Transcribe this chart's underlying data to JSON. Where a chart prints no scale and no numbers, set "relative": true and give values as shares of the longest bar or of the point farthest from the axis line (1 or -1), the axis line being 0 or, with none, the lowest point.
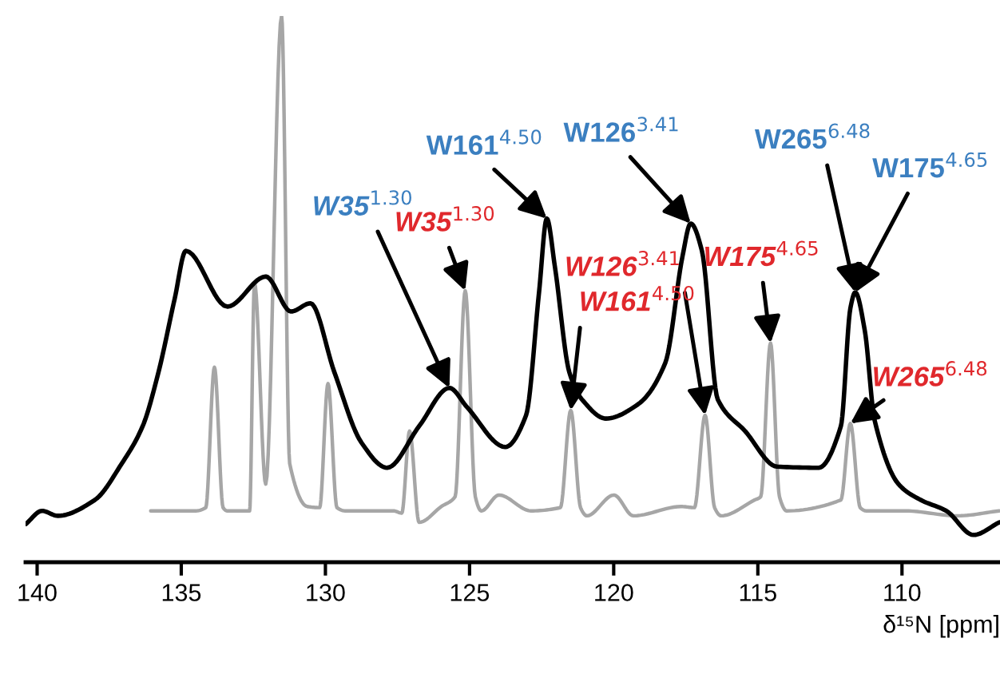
{
  "chart_data": {
    "type": "line",
    "relative": true,
    "xlabel": "δ¹⁵N [ppm]",
    "xlim": [
      140.4,
      106.6
    ],
    "xticks": [
      140,
      135,
      130,
      125,
      120,
      115,
      110
    ],
    "grid": false,
    "marker": "none",
    "line_style": "solid",
    "series": [
      {
        "color": "#000000",
        "x": [
          140.39,
          139.83,
          139.28,
          138.0,
          137.06,
          136.34,
          135.79,
          135.23,
          134.84,
          133.4,
          132.07,
          131.19,
          130.52,
          129.69,
          128.75,
          127.86,
          126.75,
          125.7,
          125.09,
          123.76,
          123.04,
          122.59,
          122.32,
          122.04,
          121.54,
          121.1,
          120.27,
          119.16,
          118.21,
          117.61,
          117.33,
          116.94,
          116.39,
          115.44,
          114.33,
          112.89,
          112.12,
          111.79,
          111.62,
          111.29,
          110.95,
          110.12,
          109.35,
          108.46,
          107.52,
          106.63
        ],
        "values": [
          0.07,
          0.094,
          0.085,
          0.114,
          0.181,
          0.249,
          0.348,
          0.482,
          0.57,
          0.468,
          0.523,
          0.459,
          0.474,
          0.348,
          0.219,
          0.173,
          0.249,
          0.319,
          0.284,
          0.211,
          0.269,
          0.494,
          0.629,
          0.541,
          0.348,
          0.298,
          0.263,
          0.289,
          0.365,
          0.561,
          0.62,
          0.57,
          0.298,
          0.24,
          0.175,
          0.173,
          0.249,
          0.465,
          0.494,
          0.424,
          0.26,
          0.143,
          0.114,
          0.094,
          0.05,
          0.073
        ]
      },
      {
        "color": "#a6a6a6",
        "x": [
          136.06,
          134.51,
          134.15,
          133.85,
          133.55,
          133.4,
          132.63,
          132.46,
          132.07,
          131.52,
          131.24,
          130.63,
          130.2,
          129.91,
          129.6,
          129.3,
          127.64,
          127.35,
          127.08,
          126.75,
          125.98,
          125.5,
          125.15,
          124.8,
          124.59,
          123.98,
          122.87,
          121.85,
          121.49,
          121.15,
          120.93,
          119.99,
          119.32,
          117.66,
          117.2,
          116.83,
          116.5,
          116.27,
          115.11,
          114.9,
          114.56,
          114.25,
          114.0,
          112.12,
          111.79,
          111.45,
          111.23,
          109.9,
          108.07,
          106.63
        ],
        "values": [
          0.094,
          0.094,
          0.1,
          0.357,
          0.1,
          0.094,
          0.094,
          0.512,
          0.143,
          1.0,
          0.181,
          0.102,
          0.1,
          0.327,
          0.1,
          0.094,
          0.094,
          0.09,
          0.24,
          0.073,
          0.102,
          0.12,
          0.497,
          0.12,
          0.094,
          0.123,
          0.094,
          0.1,
          0.278,
          0.1,
          0.085,
          0.123,
          0.085,
          0.102,
          0.1,
          0.269,
          0.1,
          0.085,
          0.114,
          0.12,
          0.401,
          0.12,
          0.094,
          0.114,
          0.254,
          0.1,
          0.094,
          0.094,
          0.085,
          0.094
        ]
      }
    ],
    "annotations": [
      {
        "text": "W35$^{1.30}$",
        "x": 125.7,
        "y": 0.319
      },
      {
        "text": "W35$^{1.30}$",
        "x": 125.15,
        "y": 0.497
      },
      {
        "text": "W161$^{4.50}$",
        "x": 122.32,
        "y": 0.629
      },
      {
        "text": "W126$^{3.41}$",
        "x": 116.83,
        "y": 0.269
      },
      {
        "text": "W161$^{4.50}$",
        "x": 121.49,
        "y": 0.278
      },
      {
        "text": "W126$^{3.41}$",
        "x": 117.33,
        "y": 0.62
      },
      {
        "text": "W175$^{4.65}$",
        "x": 114.56,
        "y": 0.401
      },
      {
        "text": "W265$^{6.48}$",
        "x": 111.62,
        "y": 0.494
      },
      {
        "text": "W175$^{4.65}$",
        "x": 111.62,
        "y": 0.494
      },
      {
        "text": "W265$^{6.48}$",
        "x": 111.79,
        "y": 0.254
      }
    ]
  }
}
